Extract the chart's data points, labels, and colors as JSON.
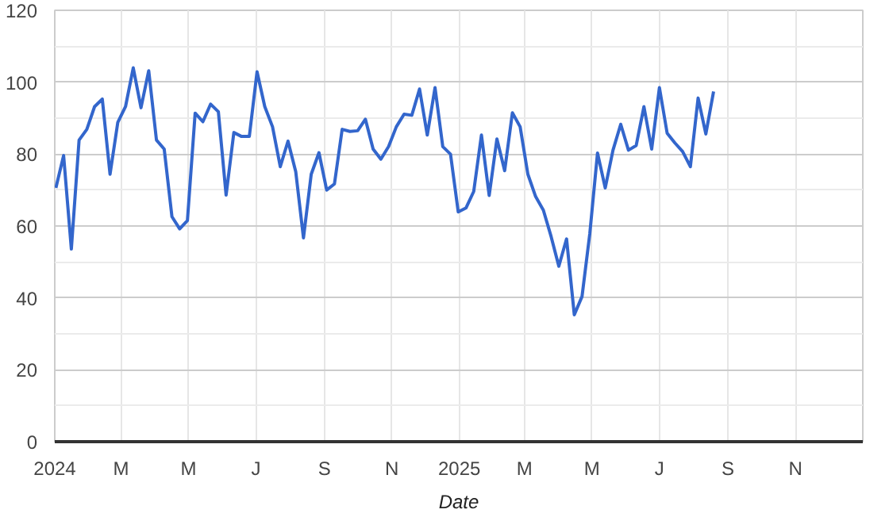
{
  "chart_data": {
    "type": "line",
    "xlabel": "Date",
    "x": [
      "2024-01-02",
      "2024-01-09",
      "2024-01-16",
      "2024-01-23",
      "2024-01-30",
      "2024-02-06",
      "2024-02-13",
      "2024-02-20",
      "2024-02-27",
      "2024-03-05",
      "2024-03-12",
      "2024-03-19",
      "2024-03-26",
      "2024-04-02",
      "2024-04-09",
      "2024-04-16",
      "2024-04-23",
      "2024-04-30",
      "2024-05-07",
      "2024-05-14",
      "2024-05-21",
      "2024-05-28",
      "2024-06-04",
      "2024-06-11",
      "2024-06-18",
      "2024-06-25",
      "2024-07-02",
      "2024-07-09",
      "2024-07-16",
      "2024-07-23",
      "2024-07-30",
      "2024-08-06",
      "2024-08-13",
      "2024-08-20",
      "2024-08-27",
      "2024-09-03",
      "2024-09-10",
      "2024-09-17",
      "2024-09-24",
      "2024-10-01",
      "2024-10-08",
      "2024-10-15",
      "2024-10-22",
      "2024-10-29",
      "2024-11-05",
      "2024-11-12",
      "2024-11-19",
      "2024-11-26",
      "2024-12-03",
      "2024-12-10",
      "2024-12-17",
      "2024-12-24",
      "2024-12-31",
      "2025-01-07",
      "2025-01-14",
      "2025-01-21",
      "2025-01-28",
      "2025-02-04",
      "2025-02-11",
      "2025-02-18",
      "2025-02-25",
      "2025-03-04",
      "2025-03-11",
      "2025-03-18",
      "2025-03-25",
      "2025-04-01",
      "2025-04-08",
      "2025-04-15",
      "2025-04-22",
      "2025-04-29",
      "2025-05-06",
      "2025-05-13",
      "2025-05-20",
      "2025-05-27",
      "2025-06-03",
      "2025-06-10",
      "2025-06-17",
      "2025-06-24",
      "2025-07-01",
      "2025-07-08",
      "2025-07-15",
      "2025-07-22",
      "2025-07-29",
      "2025-08-05",
      "2025-08-12",
      "2025-08-19"
    ],
    "series": [
      {
        "color": "#3366cc",
        "values": [
          70.6,
          79.6,
          53.6,
          83.9,
          86.9,
          93.2,
          95.3,
          74.4,
          88.8,
          93.2,
          104,
          92.9,
          103.2,
          83.9,
          81.4,
          62.6,
          59.2,
          61.5,
          91.4,
          89,
          93.9,
          91.8,
          68.6,
          86,
          84.9,
          84.9,
          102.9,
          93.2,
          87.6,
          76.5,
          83.6,
          75.1,
          56.7,
          74.4,
          80.4,
          70,
          71.7,
          86.9,
          86.3,
          86.5,
          89.7,
          81.4,
          78.6,
          82.1,
          87.6,
          91.1,
          90.8,
          98.1,
          85.3,
          98.5,
          82.1,
          80,
          63.9,
          65,
          69.6,
          85.3,
          68.5,
          84.2,
          75.4,
          91.5,
          87.6,
          74.4,
          68.2,
          64.4,
          57.1,
          48.8,
          56.4,
          35.3,
          40.4,
          57.8,
          80.3,
          70.6,
          81.1,
          88.3,
          81.1,
          82.4,
          93.2,
          81.4,
          98.5,
          85.8,
          83.1,
          80.7,
          76.5,
          95.6,
          85.6,
          97.4
        ]
      }
    ],
    "xlim": [
      "2024-01-01",
      "2026-01-01"
    ],
    "xticks": [
      {
        "value": "2024-01-01",
        "label": "2024"
      },
      {
        "value": "2024-03-01",
        "label": "M"
      },
      {
        "value": "2024-05-01",
        "label": "M"
      },
      {
        "value": "2024-07-01",
        "label": "J"
      },
      {
        "value": "2024-09-01",
        "label": "S"
      },
      {
        "value": "2024-11-01",
        "label": "N"
      },
      {
        "value": "2025-01-01",
        "label": "2025"
      },
      {
        "value": "2025-03-01",
        "label": "M"
      },
      {
        "value": "2025-05-01",
        "label": "M"
      },
      {
        "value": "2025-07-01",
        "label": "J"
      },
      {
        "value": "2025-09-01",
        "label": "S"
      },
      {
        "value": "2025-11-01",
        "label": "N"
      }
    ],
    "ylim": [
      0,
      120
    ],
    "yticks": [
      0,
      20,
      40,
      60,
      80,
      100,
      120
    ],
    "grid": true,
    "marker": "none",
    "line_style": "solid"
  }
}
